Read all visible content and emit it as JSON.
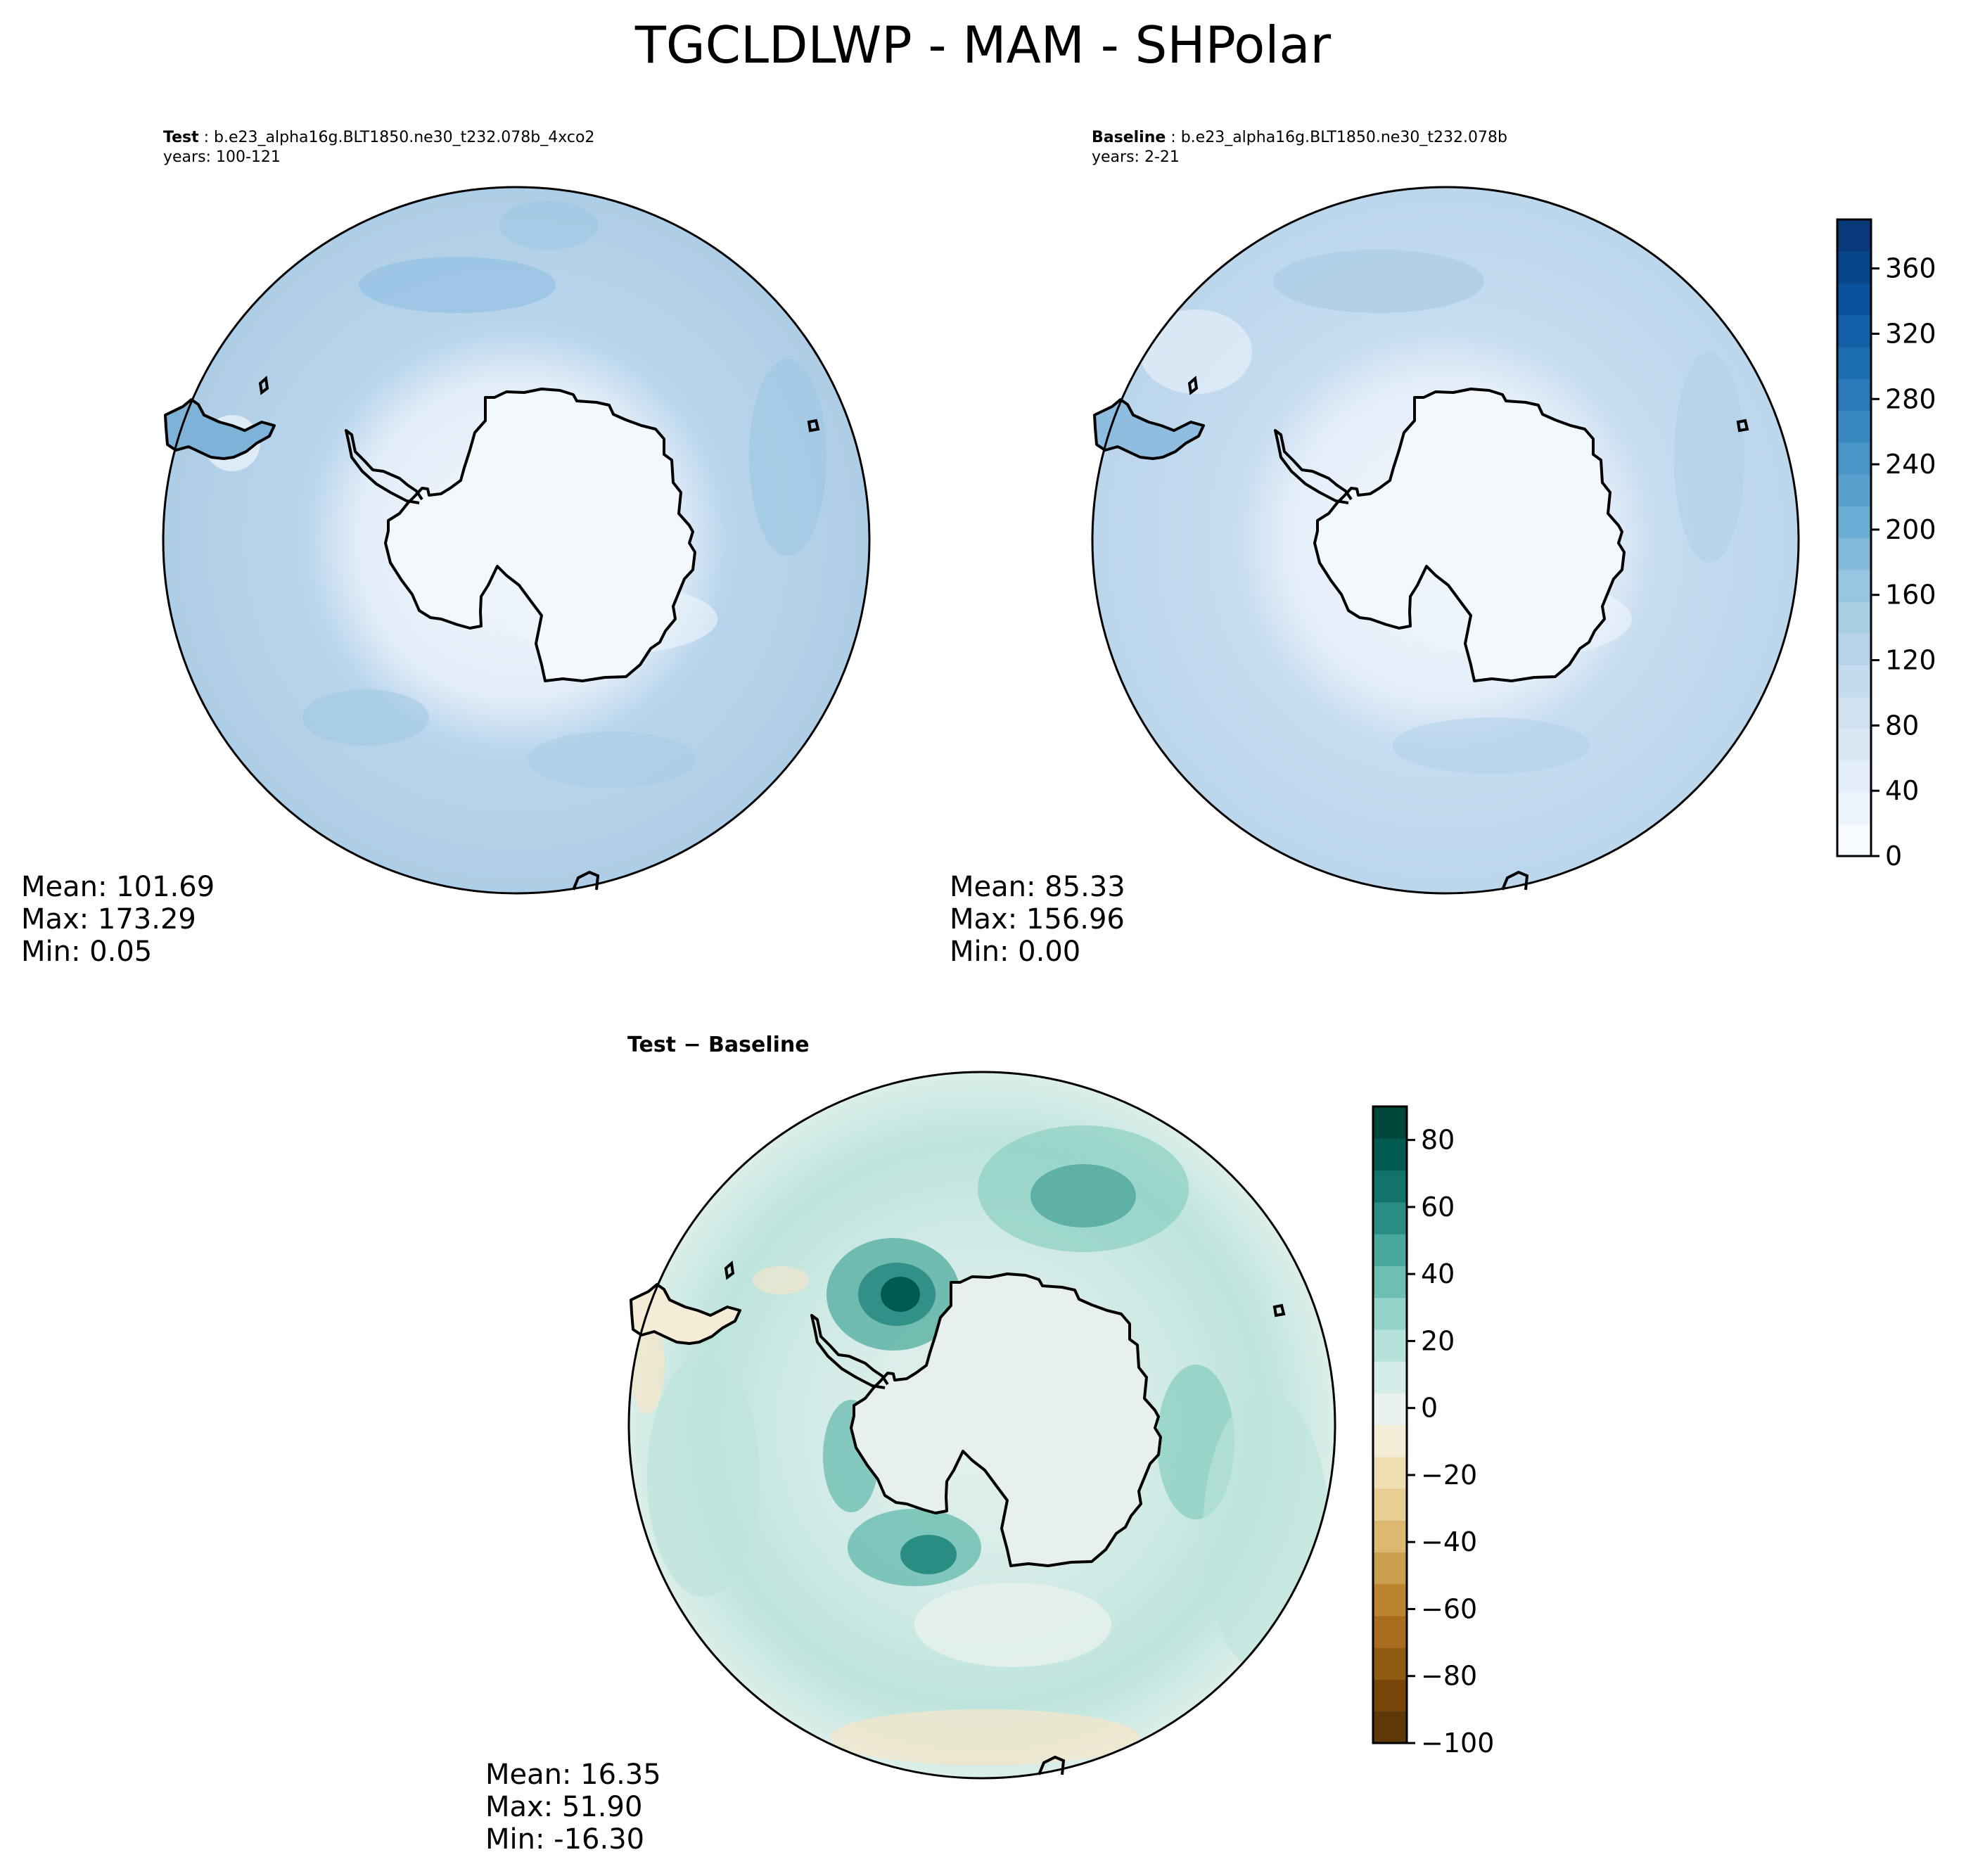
{
  "figure_title": "TGCLDLWP - MAM - SHPolar",
  "chart_data": [
    {
      "type": "heatmap",
      "projection": "south-polar-stereographic",
      "panel": "test",
      "title_bold": "Test",
      "title_case": "b.e23_alpha16g.BLT1850.ne30_t232.078b_4xco2",
      "title_years": "years: 100-121",
      "stats": {
        "mean": "Mean: 101.69",
        "max": "Max: 173.29",
        "min": "Min:  0.05"
      },
      "colormap": "Blues",
      "levels": [
        0,
        20,
        40,
        60,
        80,
        100,
        120,
        140,
        160,
        180,
        200,
        220,
        240,
        260,
        280,
        300,
        320,
        340,
        360,
        380,
        400
      ],
      "field_description": "zonal background ~120-150 over Southern Ocean, near 0 over Antarctica"
    },
    {
      "type": "heatmap",
      "projection": "south-polar-stereographic",
      "panel": "baseline",
      "title_bold": "Baseline",
      "title_case": "b.e23_alpha16g.BLT1850.ne30_t232.078b",
      "title_years": "years: 2-21",
      "stats": {
        "mean": "Mean: 85.33",
        "max": "Max: 156.96",
        "min": "Min:  0.00"
      },
      "colormap": "Blues"
    },
    {
      "type": "heatmap",
      "projection": "south-polar-stereographic",
      "panel": "difference",
      "title": "Test − Baseline",
      "stats": {
        "mean": "Mean: 16.35",
        "max": "Max: 51.90",
        "min": "Min: -16.30"
      },
      "colormap": "BrBG",
      "levels": [
        -100,
        -90,
        -80,
        -70,
        -60,
        -50,
        -40,
        -30,
        -20,
        -10,
        0,
        10,
        20,
        30,
        40,
        50,
        60,
        70,
        80,
        90
      ]
    }
  ],
  "colorbar_top": {
    "min": 0,
    "max": 390,
    "ticks": [
      0,
      40,
      80,
      120,
      160,
      200,
      240,
      280,
      320,
      360
    ],
    "tick_labels": [
      "0",
      "40",
      "80",
      "120",
      "160",
      "200",
      "240",
      "280",
      "320",
      "360"
    ],
    "colors": [
      "#f7fbff",
      "#edf4fc",
      "#e3eef9",
      "#dae8f5",
      "#d0e2f2",
      "#c4daee",
      "#b7d4ea",
      "#a8cee4",
      "#95c5df",
      "#81badb",
      "#6aaed6",
      "#58a1cf",
      "#4895c8",
      "#3888c1",
      "#2a7ab9",
      "#1c6cb1",
      "#1160a8",
      "#08529d",
      "#08468b",
      "#083a7a"
    ]
  },
  "colorbar_diff": {
    "min": -100,
    "max": 90,
    "ticks": [
      -100,
      -80,
      -60,
      -40,
      -20,
      0,
      20,
      40,
      60,
      80
    ],
    "tick_labels": [
      "−100",
      "−80",
      "−60",
      "−40",
      "−20",
      "0",
      "20",
      "40",
      "60",
      "80"
    ],
    "colors": [
      "#5e3806",
      "#774509",
      "#8f5a12",
      "#a96c1e",
      "#bd842f",
      "#cc9e4f",
      "#dbb770",
      "#e7ce93",
      "#efdfb3",
      "#f4ecd6",
      "#eaf2f0",
      "#d3ede8",
      "#b4e2da",
      "#93d3c8",
      "#6fbeb3",
      "#4aa79c",
      "#2a8d84",
      "#117369",
      "#015a50",
      "#00463b"
    ]
  },
  "colors": {
    "land": "#f3f8fd",
    "ocean_test": "#b3d1e8",
    "ocean_base": "#c1daee",
    "diff_land": "#e7f0ee",
    "diff_ocean": "#cbe9e3"
  }
}
